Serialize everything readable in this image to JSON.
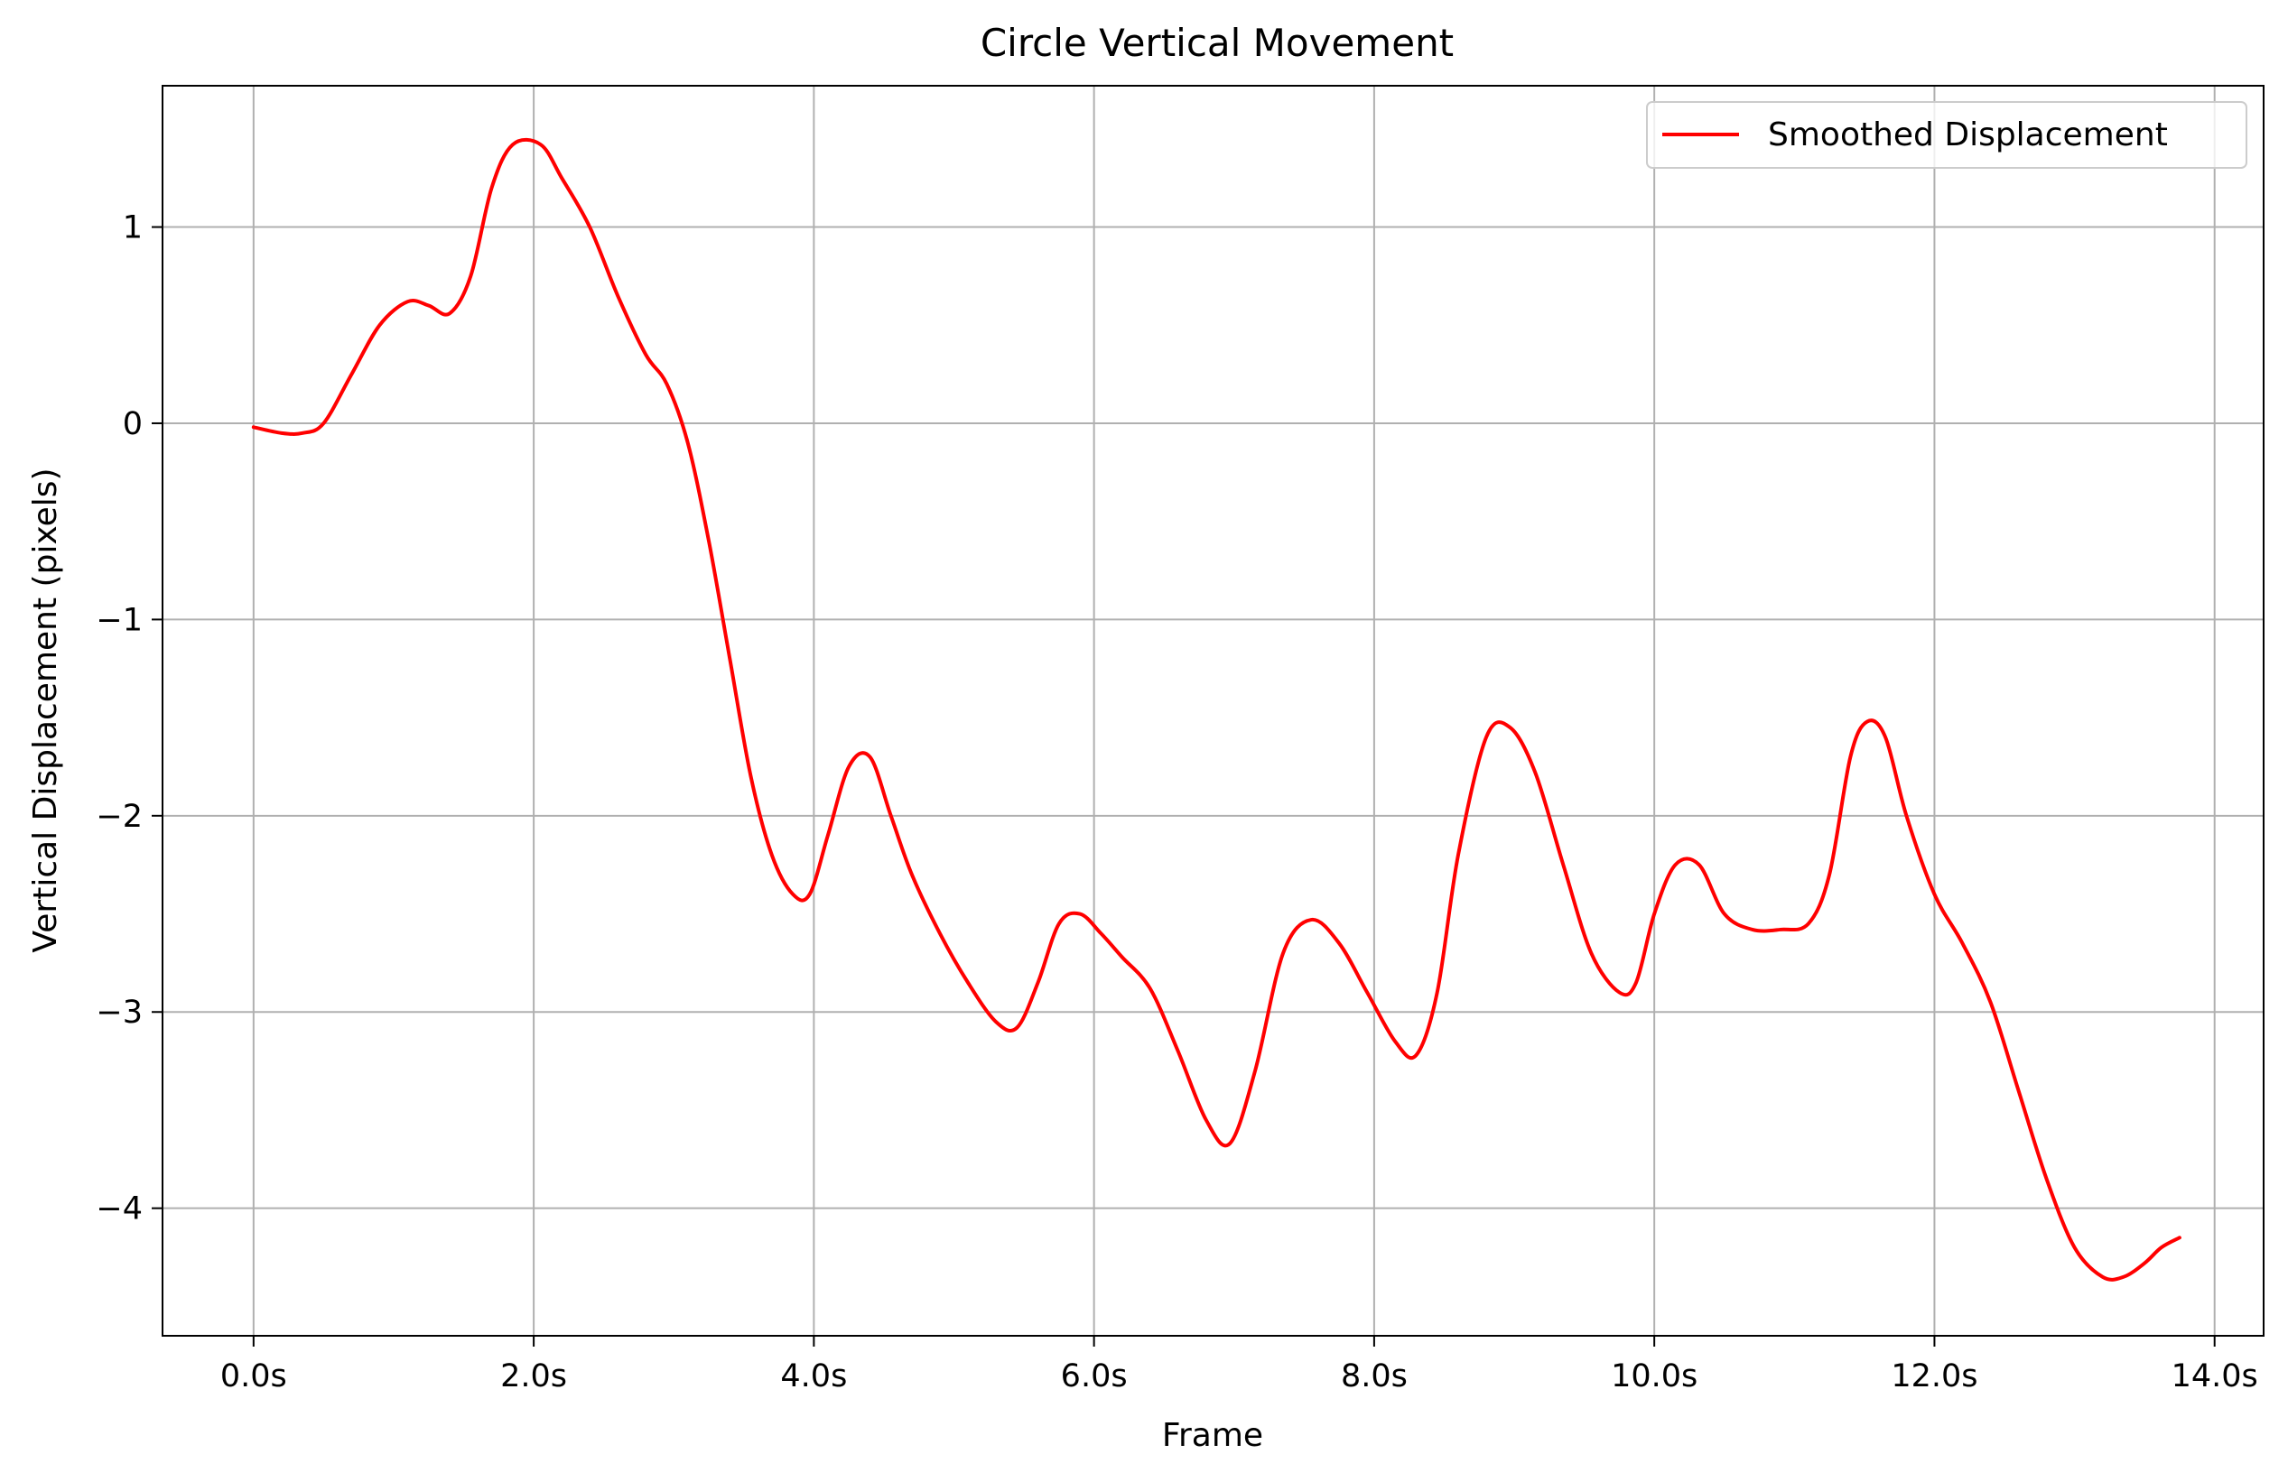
{
  "chart_data": {
    "type": "line",
    "title": "Circle Vertical Movement",
    "xlabel": "Frame",
    "ylabel": "Vertical Displacement (pixels)",
    "xlim": [
      -0.65,
      14.35
    ],
    "ylim": [
      -4.65,
      1.72
    ],
    "x_ticks": [
      0,
      2,
      4,
      6,
      8,
      10,
      12,
      14
    ],
    "x_tick_labels": [
      "0.0s",
      "2.0s",
      "4.0s",
      "6.0s",
      "8.0s",
      "10.0s",
      "12.0s",
      "14.0s"
    ],
    "y_ticks": [
      1,
      0,
      -1,
      -2,
      -3,
      -4
    ],
    "y_tick_labels": [
      "1",
      "0",
      "−1",
      "−2",
      "−3",
      "−4"
    ],
    "grid": true,
    "legend_position": "top-right",
    "colors": {
      "series": "#ff0000",
      "grid": "#b0b0b0",
      "axes": "#000000"
    },
    "series": [
      {
        "name": "Smoothed Displacement",
        "x": [
          0.0,
          0.2,
          0.35,
          0.5,
          0.7,
          0.9,
          1.1,
          1.25,
          1.4,
          1.55,
          1.7,
          1.85,
          2.05,
          2.2,
          2.4,
          2.6,
          2.8,
          2.95,
          3.1,
          3.25,
          3.4,
          3.55,
          3.7,
          3.85,
          3.97,
          4.1,
          4.25,
          4.4,
          4.55,
          4.7,
          4.9,
          5.1,
          5.3,
          5.45,
          5.6,
          5.75,
          5.9,
          6.05,
          6.2,
          6.4,
          6.6,
          6.8,
          6.97,
          7.15,
          7.35,
          7.55,
          7.75,
          7.95,
          8.15,
          8.3,
          8.45,
          8.6,
          8.8,
          8.97,
          9.15,
          9.35,
          9.55,
          9.75,
          9.87,
          10.0,
          10.15,
          10.32,
          10.5,
          10.7,
          10.9,
          11.1,
          11.25,
          11.4,
          11.52,
          11.65,
          11.8,
          12.0,
          12.2,
          12.4,
          12.6,
          12.8,
          13.0,
          13.2,
          13.35,
          13.5,
          13.62,
          13.75
        ],
        "y": [
          -0.02,
          -0.05,
          -0.05,
          0.0,
          0.25,
          0.5,
          0.62,
          0.6,
          0.56,
          0.75,
          1.2,
          1.42,
          1.42,
          1.25,
          1.0,
          0.65,
          0.35,
          0.2,
          -0.1,
          -0.6,
          -1.2,
          -1.8,
          -2.2,
          -2.4,
          -2.4,
          -2.1,
          -1.75,
          -1.7,
          -2.0,
          -2.3,
          -2.6,
          -2.85,
          -3.05,
          -3.08,
          -2.85,
          -2.55,
          -2.5,
          -2.6,
          -2.72,
          -2.88,
          -3.2,
          -3.55,
          -3.67,
          -3.3,
          -2.7,
          -2.53,
          -2.65,
          -2.9,
          -3.15,
          -3.22,
          -2.9,
          -2.2,
          -1.6,
          -1.55,
          -1.78,
          -2.25,
          -2.7,
          -2.9,
          -2.85,
          -2.5,
          -2.25,
          -2.25,
          -2.5,
          -2.58,
          -2.58,
          -2.55,
          -2.3,
          -1.7,
          -1.52,
          -1.6,
          -2.0,
          -2.4,
          -2.65,
          -2.95,
          -3.4,
          -3.85,
          -4.2,
          -4.35,
          -4.35,
          -4.28,
          -4.2,
          -4.15
        ]
      }
    ]
  }
}
